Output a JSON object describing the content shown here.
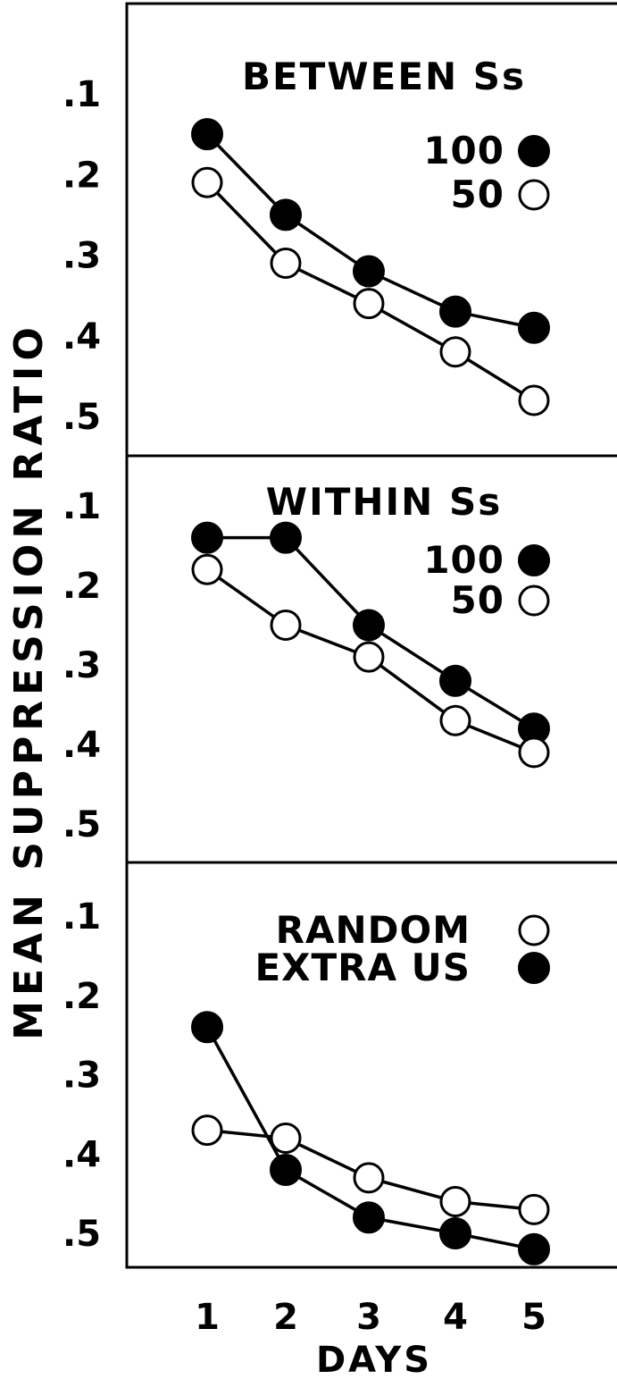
{
  "figure": {
    "ylabel": "MEAN SUPPRESSION RATIO",
    "xlabel": "DAYS"
  },
  "chart_data": [
    {
      "type": "line",
      "title": "BETWEEN Ss",
      "x": [
        1,
        2,
        3,
        4,
        5
      ],
      "x_ticks": [
        "1",
        "2",
        "3",
        "4",
        "5"
      ],
      "y_ticks": [
        ".1",
        ".2",
        ".3",
        ".4",
        ".5"
      ],
      "ylim": [
        0.05,
        0.55
      ],
      "y_inverted": true,
      "series": [
        {
          "name": "100",
          "marker": "filled-circle",
          "values": [
            0.15,
            0.25,
            0.32,
            0.37,
            0.39
          ]
        },
        {
          "name": "50",
          "marker": "open-circle",
          "values": [
            0.21,
            0.31,
            0.36,
            0.42,
            0.48
          ]
        }
      ]
    },
    {
      "type": "line",
      "title": "WITHIN Ss",
      "x": [
        1,
        2,
        3,
        4,
        5
      ],
      "x_ticks": [
        "1",
        "2",
        "3",
        "4",
        "5"
      ],
      "y_ticks": [
        ".1",
        ".2",
        ".3",
        ".4",
        ".5"
      ],
      "ylim": [
        0.05,
        0.55
      ],
      "y_inverted": true,
      "series": [
        {
          "name": "100",
          "marker": "filled-circle",
          "values": [
            0.14,
            0.14,
            0.25,
            0.32,
            0.38
          ]
        },
        {
          "name": "50",
          "marker": "open-circle",
          "values": [
            0.18,
            0.25,
            0.29,
            0.37,
            0.41
          ]
        }
      ]
    },
    {
      "type": "line",
      "title": "",
      "x": [
        1,
        2,
        3,
        4,
        5
      ],
      "x_ticks": [
        "1",
        "2",
        "3",
        "4",
        "5"
      ],
      "y_ticks": [
        ".1",
        ".2",
        ".3",
        ".4",
        ".5"
      ],
      "ylim": [
        0.05,
        0.55
      ],
      "y_inverted": true,
      "series": [
        {
          "name": "RANDOM",
          "marker": "open-circle",
          "values": [
            0.37,
            0.38,
            0.43,
            0.46,
            0.47
          ]
        },
        {
          "name": "EXTRA US",
          "marker": "filled-circle",
          "values": [
            0.24,
            0.42,
            0.48,
            0.5,
            0.52
          ]
        }
      ]
    }
  ]
}
